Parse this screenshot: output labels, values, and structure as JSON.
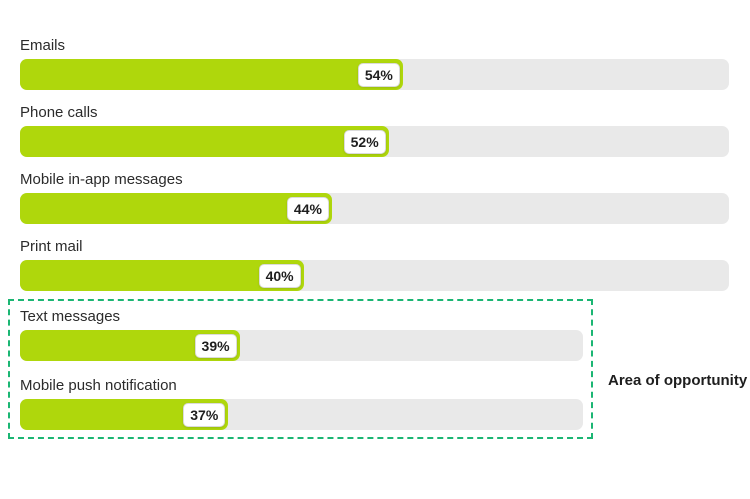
{
  "page": {
    "background": "#ffffff"
  },
  "colors": {
    "bar-fill": "#AFD70C",
    "bar-track": "#E9E9E9",
    "chip-bg": "#FFFFFF",
    "chip-border": "#DBDBDB",
    "chip-text": "#1E1E1E",
    "label-text": "#2B2B2B",
    "dash-border": "#1BB673",
    "annotation-text": "#1E1E1E"
  },
  "chart_data": {
    "type": "bar",
    "orientation": "horizontal",
    "unit": "%",
    "grid": false,
    "categories": [
      "Emails",
      "Phone calls",
      "Mobile in-app messages",
      "Print mail",
      "Text messages",
      "Mobile push notification"
    ],
    "values": [
      54,
      52,
      44,
      40,
      39,
      37
    ],
    "rows": [
      {
        "label": "Emails",
        "value": 54,
        "pct_label": "54%",
        "in_opportunity_area": false
      },
      {
        "label": "Phone calls",
        "value": 52,
        "pct_label": "52%",
        "in_opportunity_area": false
      },
      {
        "label": "Mobile in-app messages",
        "value": 44,
        "pct_label": "44%",
        "in_opportunity_area": false
      },
      {
        "label": "Print mail",
        "value": 40,
        "pct_label": "40%",
        "in_opportunity_area": false
      },
      {
        "label": "Text messages",
        "value": 39,
        "pct_label": "39%",
        "in_opportunity_area": true
      },
      {
        "label": "Mobile push notification",
        "value": 37,
        "pct_label": "37%",
        "in_opportunity_area": true
      }
    ],
    "annotation": {
      "label": "Area of opportunity",
      "applies_to": [
        "Text messages",
        "Mobile push notification"
      ]
    }
  }
}
